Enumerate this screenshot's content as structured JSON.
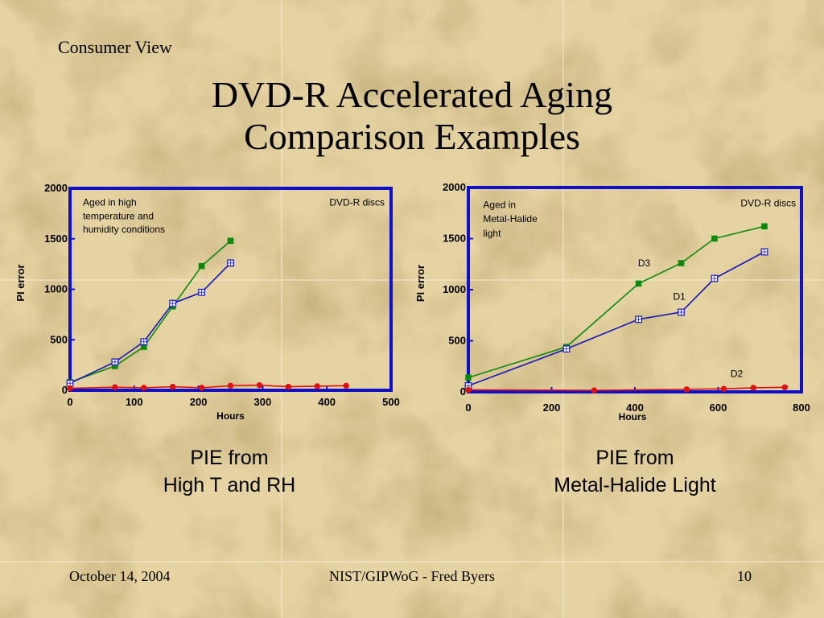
{
  "slide": {
    "corner_label": "Consumer View",
    "title_line1": "DVD-R Accelerated Aging",
    "title_line2": "Comparison Examples",
    "caption_left_line1": "PIE from",
    "caption_left_line2": "High T and RH",
    "caption_right_line1": "PIE from",
    "caption_right_line2": "Metal-Halide Light",
    "footer_date": "October 14, 2004",
    "footer_center": "NIST/GIPWoG - Fred Byers",
    "footer_page": "10"
  },
  "colors": {
    "background": "#e6d3a3",
    "frame": "#1010c8",
    "green": "#0a8a0a",
    "blue": "#1818b8",
    "red": "#dd1111"
  },
  "chart_data": [
    {
      "type": "line",
      "xlabel": "Hours",
      "ylabel": "PI error",
      "xlim": [
        0,
        500
      ],
      "ylim": [
        0,
        2000
      ],
      "xticks": [
        "0",
        "100",
        "200",
        "300",
        "400",
        "500"
      ],
      "yticks": [
        "0",
        "500",
        "1000",
        "1500",
        "2000"
      ],
      "grid": false,
      "annotations": [
        {
          "text": "Aged in high",
          "x": 20,
          "y": 1830,
          "anchor": "start"
        },
        {
          "text": "temperature and",
          "x": 20,
          "y": 1695,
          "anchor": "start"
        },
        {
          "text": "humidity conditions",
          "x": 20,
          "y": 1560,
          "anchor": "start"
        },
        {
          "text": "DVD-R discs",
          "x": 490,
          "y": 1830,
          "anchor": "end"
        }
      ],
      "series": [
        {
          "marker": "filled-square",
          "color": "#0a8a0a",
          "x": [
            0,
            70,
            115,
            160,
            205,
            250
          ],
          "y": [
            80,
            240,
            430,
            830,
            1230,
            1480
          ]
        },
        {
          "marker": "open-square",
          "color": "#1818b8",
          "x": [
            0,
            70,
            115,
            160,
            205,
            250
          ],
          "y": [
            70,
            280,
            480,
            860,
            970,
            1260
          ]
        },
        {
          "marker": "circle",
          "color": "#dd1111",
          "x": [
            0,
            70,
            115,
            160,
            205,
            250,
            295,
            340,
            385,
            430
          ],
          "y": [
            20,
            30,
            25,
            35,
            25,
            45,
            50,
            35,
            40,
            45
          ]
        }
      ]
    },
    {
      "type": "line",
      "xlabel": "Hours",
      "ylabel": "PI error",
      "xlim": [
        0,
        900
      ],
      "ylim": [
        0,
        2000
      ],
      "xticks": [
        "0",
        "200",
        "400",
        "600",
        "800"
      ],
      "yticks": [
        "0",
        "500",
        "1000",
        "1500",
        "2000"
      ],
      "grid": false,
      "annotations": [
        {
          "text": "Aged in",
          "x": 40,
          "y": 1800,
          "anchor": "start"
        },
        {
          "text": "Metal-Halide",
          "x": 40,
          "y": 1660,
          "anchor": "start"
        },
        {
          "text": "light",
          "x": 40,
          "y": 1520,
          "anchor": "start"
        },
        {
          "text": "DVD-R discs",
          "x": 885,
          "y": 1815,
          "anchor": "end"
        },
        {
          "text": "D3",
          "x": 475,
          "y": 1230,
          "anchor": "middle"
        },
        {
          "text": "D1",
          "x": 570,
          "y": 900,
          "anchor": "middle"
        },
        {
          "text": "D2",
          "x": 725,
          "y": 145,
          "anchor": "middle"
        }
      ],
      "series": [
        {
          "name": "D3",
          "marker": "filled-square",
          "color": "#0a8a0a",
          "x": [
            0,
            265,
            460,
            575,
            665,
            800
          ],
          "y": [
            140,
            440,
            1060,
            1260,
            1500,
            1620
          ]
        },
        {
          "name": "D1",
          "marker": "open-square",
          "color": "#1818b8",
          "x": [
            0,
            265,
            460,
            575,
            665,
            800
          ],
          "y": [
            60,
            420,
            710,
            780,
            1110,
            1370
          ]
        },
        {
          "name": "D2",
          "marker": "circle",
          "color": "#dd1111",
          "x": [
            0,
            340,
            590,
            690,
            770,
            855
          ],
          "y": [
            20,
            15,
            25,
            30,
            40,
            45
          ]
        }
      ]
    }
  ]
}
